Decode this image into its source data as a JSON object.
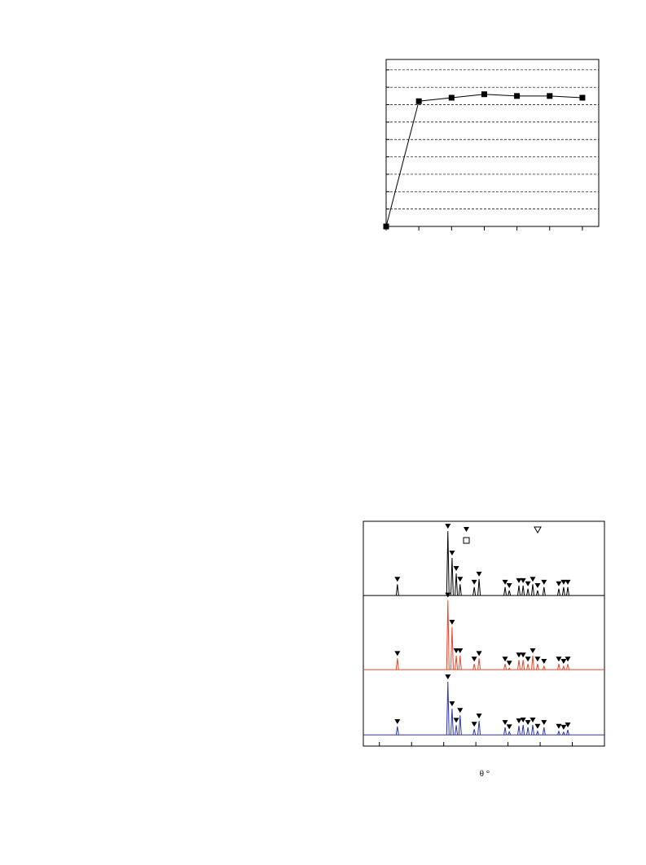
{
  "chart_data": [
    {
      "type": "line",
      "grid": true,
      "xlim": [
        0,
        6.5
      ],
      "xticks": [
        0,
        1,
        2,
        3,
        4,
        5,
        6
      ],
      "ylim": [
        0,
        9.6
      ],
      "yticks": [
        0,
        1,
        2,
        3,
        4,
        5,
        6,
        7,
        8,
        9
      ],
      "x": [
        0,
        1,
        2,
        3,
        4,
        5,
        6
      ],
      "series": [
        {
          "color": "#000000",
          "values": [
            0,
            7.2,
            7.4,
            7.6,
            7.5,
            7.5,
            7.4
          ]
        }
      ]
    },
    {
      "type": "spectrum",
      "xlabel": "θ °",
      "xlim": [
        5,
        80
      ],
      "xticks": [
        10,
        20,
        30,
        40,
        50,
        60,
        70,
        80
      ],
      "ylim": [
        0,
        100
      ],
      "x": [
        15.6,
        31.3,
        32.6,
        33.9,
        35.1,
        39.5,
        41.0,
        49.1,
        50.4,
        53.4,
        54.7,
        56.2,
        57.7,
        59.2,
        61.2,
        65.8,
        67.3,
        68.6
      ],
      "series": [
        {
          "color": "#000000",
          "baseline": 67,
          "values": [
            72,
            95.6,
            83.7,
            76.8,
            72,
            70.7,
            74.3,
            70.7,
            69.2,
            71.4,
            71.4,
            70,
            72,
            69.2,
            70.7,
            70,
            70.7,
            70.7
          ]
        },
        {
          "color": "#e8462a",
          "baseline": 34,
          "values": [
            39,
            65,
            52.9,
            40.2,
            40.2,
            36.5,
            39,
            36.5,
            34.7,
            38.3,
            38.3,
            36.5,
            40.2,
            36.5,
            35.5,
            36.5,
            35.5,
            36.5
          ]
        },
        {
          "color": "#2a36a8",
          "baseline": 5,
          "values": [
            8.7,
            28.6,
            16.6,
            9.3,
            13.7,
            7.5,
            11.2,
            8.3,
            6.4,
            9,
            9.4,
            8.3,
            9.4,
            6.6,
            8.3,
            6.6,
            6.2,
            7.2
          ]
        }
      ]
    }
  ]
}
